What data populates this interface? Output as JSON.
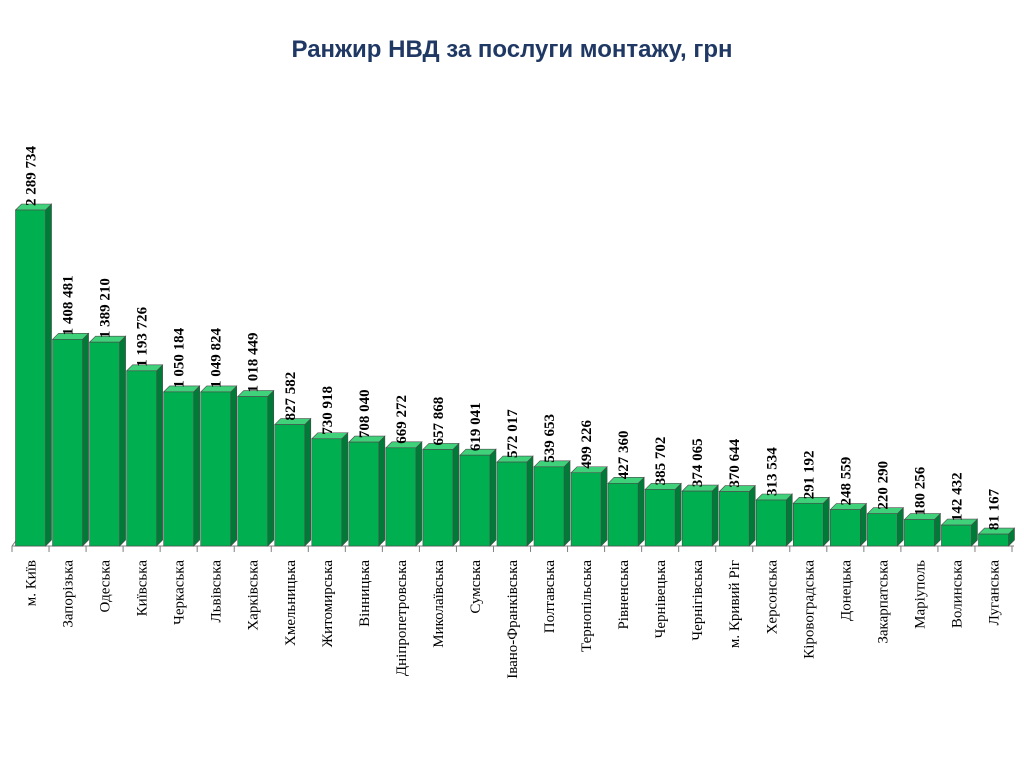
{
  "title": "Ранжир НВД за послуги монтажу, грн",
  "colors": {
    "bar": "#00b050",
    "bar_top": "#3fd27a",
    "bar_side": "#007a37",
    "title": "#1f3864"
  },
  "chart_data": {
    "type": "bar",
    "title": "Ранжир НВД за послуги монтажу, грн",
    "xlabel": "",
    "ylabel": "",
    "ylim": [
      0,
      2400000
    ],
    "grid": false,
    "legend": "none",
    "categories": [
      "м. Київ",
      "Запорізька",
      "Одеська",
      "Київська",
      "Черкаська",
      "Львівська",
      "Харківська",
      "Хмельницька",
      "Житомирська",
      "Вінницька",
      "Дніпропетровська",
      "Миколаївська",
      "Сумська",
      "Івано-Франківська",
      "Полтавська",
      "Тернопільська",
      "Рівненська",
      "Чернівецька",
      "Чернігівська",
      "м. Кривий Ріг",
      "Херсонська",
      "Кіровоградська",
      "Донецька",
      "Закарпатська",
      "Маріуполь",
      "Волинська",
      "Луганська"
    ],
    "values": [
      2289734,
      1408481,
      1389210,
      1193726,
      1050184,
      1049824,
      1018449,
      827582,
      730918,
      708040,
      669272,
      657868,
      619041,
      572017,
      539653,
      499226,
      427360,
      385702,
      374065,
      370644,
      313534,
      291192,
      248559,
      220290,
      180256,
      142432,
      81167
    ],
    "value_labels": [
      "2 289 734",
      "1 408 481",
      "1 389 210",
      "1 193 726",
      "1 050 184",
      "1 049 824",
      "1 018 449",
      "827 582",
      "730 918",
      "708 040",
      "669 272",
      "657 868",
      "619 041",
      "572 017",
      "539 653",
      "499 226",
      "427 360",
      "385 702",
      "374 065",
      "370 644",
      "313 534",
      "291 192",
      "248 559",
      "220 290",
      "180 256",
      "142 432",
      "81 167"
    ]
  }
}
